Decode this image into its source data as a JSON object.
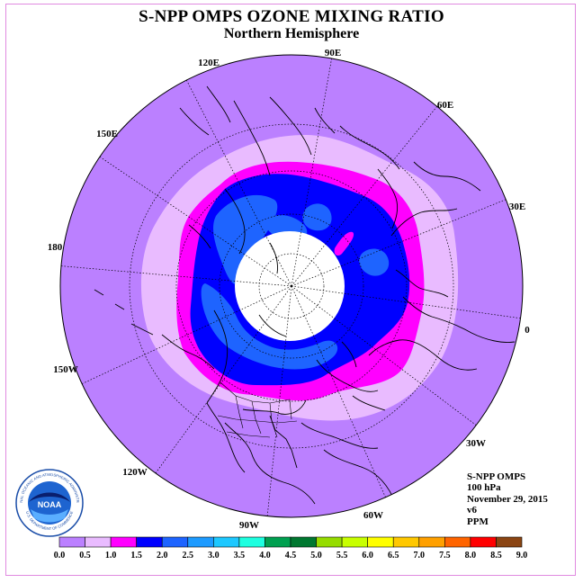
{
  "title": "S-NPP OMPS OZONE MIXING RATIO",
  "subtitle": "Northern Hemisphere",
  "info": {
    "instrument": "S-NPP OMPS",
    "level": "100 hPa",
    "date": "November 29, 2015",
    "version": "v6",
    "units": "PPM"
  },
  "longitude_labels": {
    "lon_90e": "90E",
    "lon_60e": "60E",
    "lon_30e": "30E",
    "lon_0": "0",
    "lon_30w": "30W",
    "lon_60w": "60W",
    "lon_90w": "90W",
    "lon_120w": "120W",
    "lon_150w": "150W",
    "lon_180": "180",
    "lon_150e": "150E",
    "lon_120e": "120E"
  },
  "colorbar": {
    "ticks": [
      "0.0",
      "0.5",
      "1.0",
      "1.5",
      "2.0",
      "2.5",
      "3.0",
      "3.5",
      "4.0",
      "4.5",
      "5.0",
      "5.5",
      "6.0",
      "6.5",
      "7.0",
      "7.5",
      "8.0",
      "8.5",
      "9.0"
    ],
    "colors": [
      "#bb80ff",
      "#e9bbff",
      "#ff00ff",
      "#0000ff",
      "#1e64ff",
      "#1e9bff",
      "#1ec8ff",
      "#1effe0",
      "#00a050",
      "#007830",
      "#96dc00",
      "#c8ff00",
      "#ffff00",
      "#ffc800",
      "#ffa000",
      "#ff6400",
      "#ff0000",
      "#8b4513"
    ]
  },
  "map_colors": {
    "background_disk": "#bb80ff",
    "level_0_5": "#e9bbff",
    "level_1_0": "#ff00ff",
    "level_1_5": "#0000ff",
    "level_2_0": "#1e64ff",
    "polar_hole": "#ffffff"
  },
  "logo": {
    "text": "NOAA",
    "ring_text": "NATIONAL OCEANIC AND ATMOSPHERIC ADMINISTRATION",
    "bottom_text": "U.S. DEPARTMENT OF COMMERCE"
  }
}
